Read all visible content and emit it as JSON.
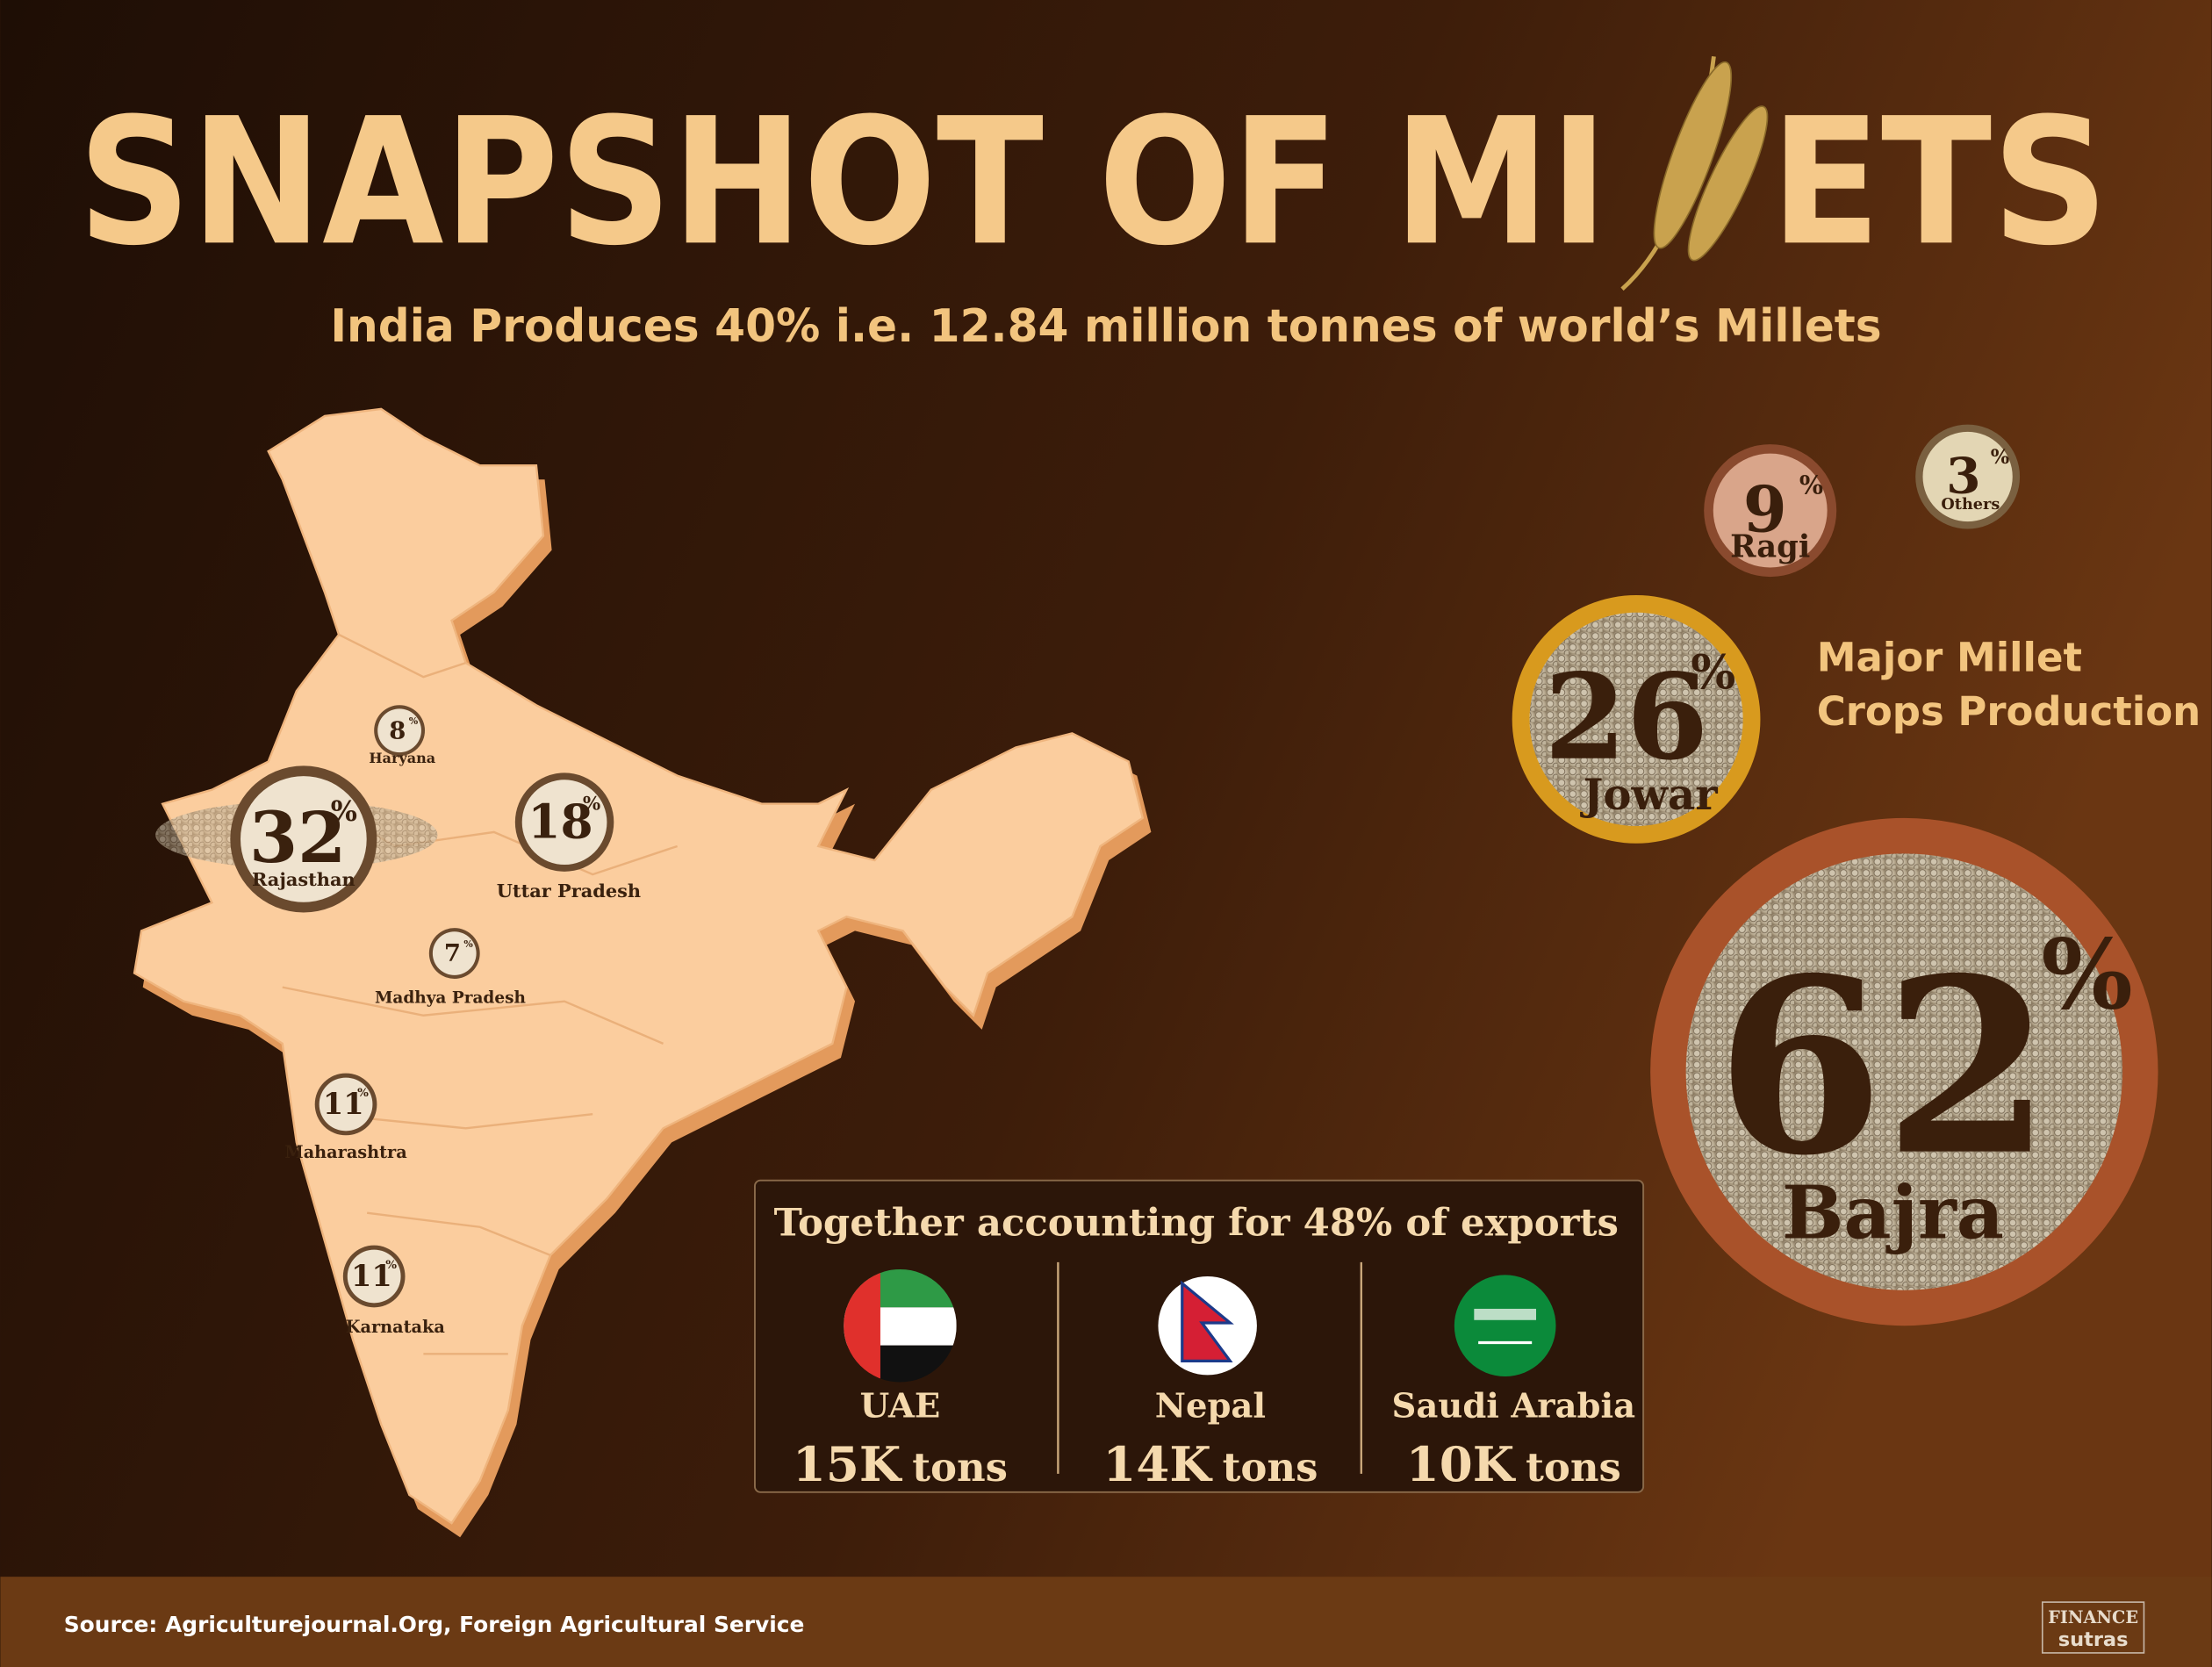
{
  "header": {
    "title_start": "SNAPSHOT OF MI",
    "title_end": "ETS",
    "subtitle": "India Produces 40% i.e. 12.84 million tonnes of world’s Millets"
  },
  "states": [
    {
      "value": 8,
      "unit": "%",
      "name": "Haryana"
    },
    {
      "value": 32,
      "unit": "%",
      "name": "Rajasthan"
    },
    {
      "value": 18,
      "unit": "%",
      "name": "Uttar Pradesh"
    },
    {
      "value": 7,
      "unit": "%",
      "name": "Madhya Pradesh"
    },
    {
      "value": 11,
      "unit": "%",
      "name": "Maharashtra"
    },
    {
      "value": 11,
      "unit": "%",
      "name": "Karnataka"
    }
  ],
  "crops": {
    "heading": [
      "Major Millet",
      "Crops Production"
    ],
    "items": [
      {
        "value": 9,
        "unit": "%",
        "name": "Ragi"
      },
      {
        "value": 3,
        "unit": "%",
        "name": "Others"
      },
      {
        "value": 26,
        "unit": "%",
        "name": "Jowar"
      },
      {
        "value": 62,
        "unit": "%",
        "name": "Bajra"
      }
    ]
  },
  "exports": {
    "title": "Together accounting for 48% of exports",
    "countries": [
      {
        "name": "UAE",
        "amount": "15K",
        "unit": "tons"
      },
      {
        "name": "Nepal",
        "amount": "14K",
        "unit": "tons"
      },
      {
        "name": "Saudi Arabia",
        "amount": "10K",
        "unit": "tons"
      }
    ]
  },
  "footer": {
    "source": "Source: Agriculturejournal.Org, Foreign Agricultural Service",
    "logo": [
      "FINANCE",
      "sutras"
    ]
  }
}
